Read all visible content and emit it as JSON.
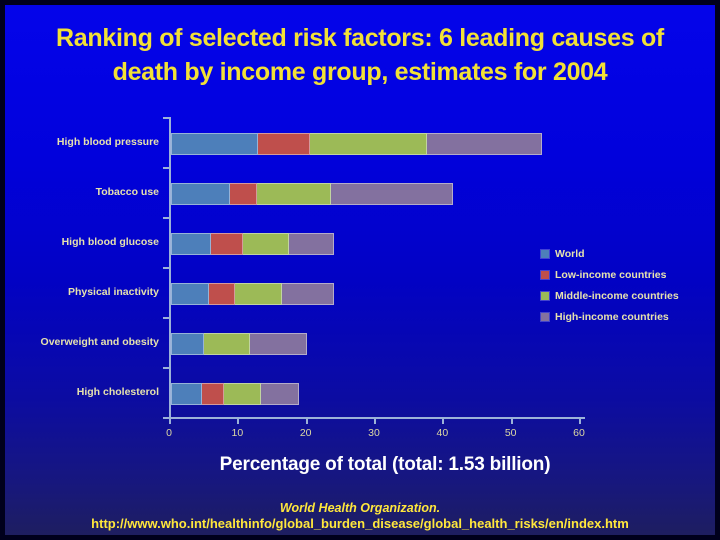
{
  "slide": {
    "title_line1": "Ranking of selected risk factors: 6 leading causes of",
    "title_line2": "death by income group, estimates for 2004",
    "xaxis_title": "Percentage of total (total: 1.53 billion)",
    "source_line1": "World Health Organization.",
    "source_line2": "http://www.who.int/healthinfo/global_burden_disease/global_health_risks/en/index.htm"
  },
  "colors": {
    "background_top": "#0404ea",
    "background_bottom": "#1e1e60",
    "title_text": "#f2e136",
    "axis_text": "#e6e2ae",
    "tick_text": "#dcd8a2",
    "axis_line": "#9cb2d8",
    "xaxis_title_text": "#ffffff",
    "footer_text": "#ffe73c"
  },
  "chart_data": {
    "type": "bar",
    "orientation": "horizontal",
    "stacked": true,
    "title": "Ranking of selected risk factors: 6 leading causes of death by income group, estimates for 2004",
    "xlabel": "Percentage of total (total: 1.53 billion)",
    "ylabel": "",
    "categories": [
      "High blood pressure",
      "Tobacco use",
      "High blood glucose",
      "Physical inactivity",
      "Overweight and obesity",
      "High cholesterol"
    ],
    "series": [
      {
        "name": "World",
        "color": "#4d7fba",
        "values": [
          12.8,
          8.7,
          5.8,
          5.5,
          4.8,
          4.5
        ]
      },
      {
        "name": "Low-income countries",
        "color": "#bf4f4c",
        "values": [
          7.5,
          3.9,
          4.8,
          3.9,
          0,
          3.2
        ]
      },
      {
        "name": "Middle-income countries",
        "color": "#9cba57",
        "values": [
          17.2,
          10.8,
          6.7,
          6.8,
          6.7,
          5.4
        ]
      },
      {
        "name": "High-income countries",
        "color": "#83719f",
        "values": [
          16.8,
          17.9,
          6.6,
          7.6,
          8.4,
          5.7
        ]
      }
    ],
    "xlim": [
      0,
      60
    ],
    "xticks": [
      0,
      10,
      20,
      30,
      40,
      50,
      60
    ],
    "grid": false,
    "legend_position": "right"
  }
}
